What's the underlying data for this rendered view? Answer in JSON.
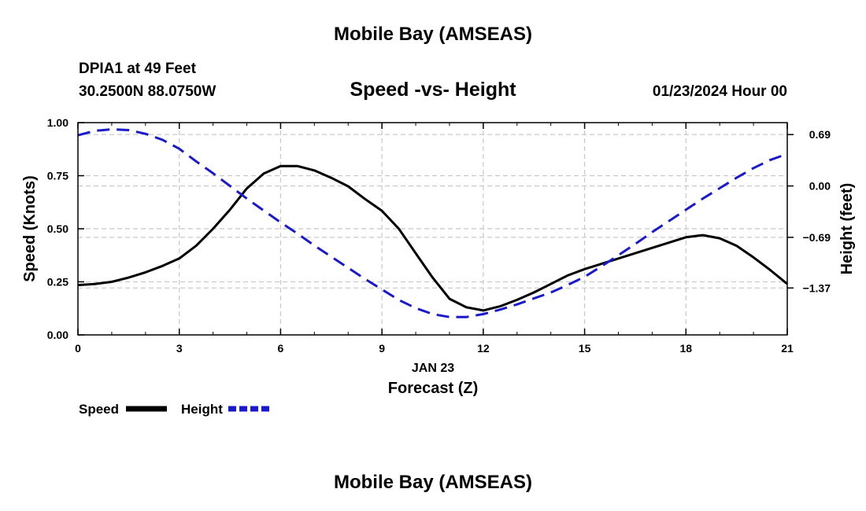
{
  "page": {
    "title_top": "Mobile Bay (AMSEAS)",
    "title_bottom": "Mobile Bay (AMSEAS)",
    "station": "DPIA1 at 49 Feet",
    "coords": "30.2500N  88.0750W",
    "date": "01/23/2024 Hour 00"
  },
  "chart_data": {
    "type": "line",
    "title": "Speed -vs- Height",
    "xlabel": "Forecast (Z)",
    "xdate_label": "JAN 23",
    "ylabel_left": "Speed (Knots)",
    "ylabel_right": "Height (feet)",
    "xlim": [
      0,
      21
    ],
    "ylim_left": [
      0,
      1.0
    ],
    "ylim_right": [
      -2.0,
      0.85
    ],
    "x_ticks": [
      "0",
      "3",
      "6",
      "9",
      "12",
      "15",
      "18",
      "21"
    ],
    "y_ticks_left": [
      "0.00",
      "0.25",
      "0.50",
      "0.75",
      "1.00"
    ],
    "y_ticks_right": [
      "0.69",
      "0.00",
      "−0.69",
      "−1.37"
    ],
    "y_ticks_right_values": [
      0.69,
      0.0,
      -0.69,
      -1.37
    ],
    "grid": true,
    "series": [
      {
        "name": "Speed",
        "axis": "left",
        "color": "#000000",
        "style": "solid",
        "x": [
          0,
          0.5,
          1,
          1.5,
          2,
          2.5,
          3,
          3.5,
          4,
          4.5,
          5,
          5.5,
          6,
          6.5,
          7,
          7.5,
          8,
          8.5,
          9,
          9.5,
          10,
          10.5,
          11,
          11.5,
          12,
          12.5,
          13,
          13.5,
          14,
          14.5,
          15,
          15.5,
          16,
          16.5,
          17,
          17.5,
          18,
          18.5,
          19,
          19.5,
          20,
          20.5,
          21
        ],
        "values": [
          0.235,
          0.24,
          0.25,
          0.27,
          0.295,
          0.325,
          0.36,
          0.42,
          0.5,
          0.59,
          0.69,
          0.76,
          0.795,
          0.795,
          0.775,
          0.74,
          0.7,
          0.64,
          0.585,
          0.5,
          0.385,
          0.27,
          0.17,
          0.13,
          0.115,
          0.135,
          0.165,
          0.2,
          0.24,
          0.28,
          0.31,
          0.335,
          0.36,
          0.385,
          0.41,
          0.435,
          0.46,
          0.47,
          0.455,
          0.42,
          0.365,
          0.305,
          0.24
        ]
      },
      {
        "name": "Height",
        "axis": "right",
        "color": "#1a1acc",
        "style": "dashed",
        "x": [
          0,
          0.5,
          1,
          1.5,
          2,
          2.5,
          3,
          3.5,
          4,
          4.5,
          5,
          5.5,
          6,
          6.5,
          7,
          7.5,
          8,
          8.5,
          9,
          9.5,
          10,
          10.5,
          11,
          11.5,
          12,
          12.5,
          13,
          13.5,
          14,
          14.5,
          15,
          15.5,
          16,
          16.5,
          17,
          17.5,
          18,
          18.5,
          19,
          19.5,
          20,
          20.5,
          21
        ],
        "values": [
          0.68,
          0.74,
          0.76,
          0.75,
          0.7,
          0.62,
          0.5,
          0.33,
          0.17,
          0.0,
          -0.17,
          -0.33,
          -0.49,
          -0.64,
          -0.8,
          -0.95,
          -1.1,
          -1.25,
          -1.39,
          -1.53,
          -1.64,
          -1.72,
          -1.76,
          -1.76,
          -1.72,
          -1.66,
          -1.59,
          -1.51,
          -1.43,
          -1.33,
          -1.22,
          -1.08,
          -0.93,
          -0.78,
          -0.62,
          -0.47,
          -0.32,
          -0.17,
          -0.03,
          0.11,
          0.24,
          0.35,
          0.43
        ]
      }
    ],
    "legend": {
      "placement": "bottom-left",
      "entries": [
        "Speed",
        "Height"
      ]
    }
  }
}
